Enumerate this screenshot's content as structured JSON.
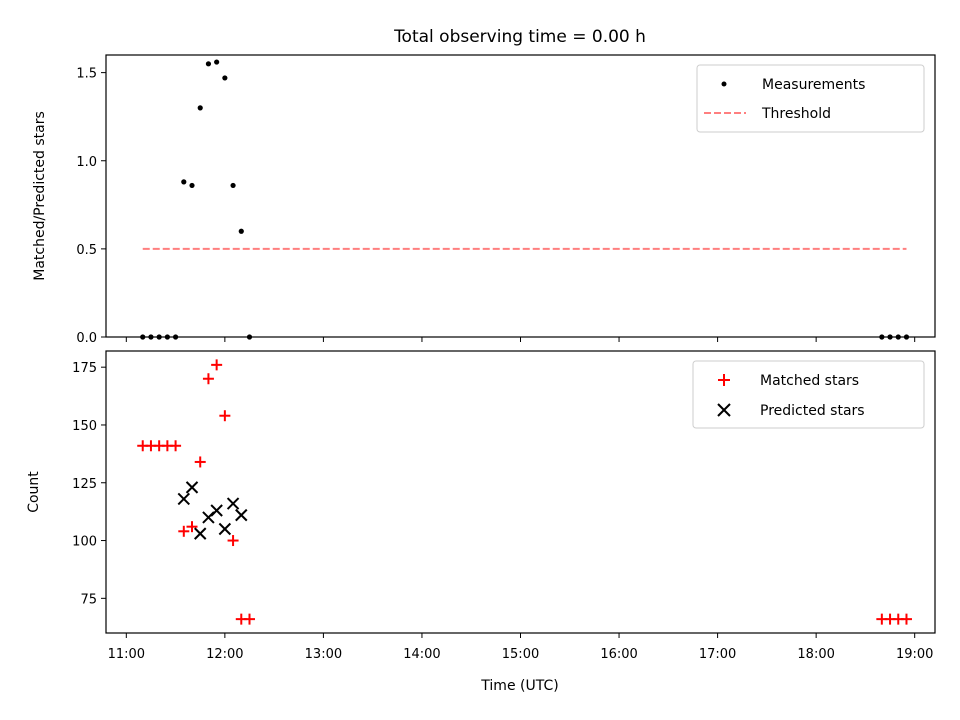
{
  "chart_data": [
    {
      "type": "scatter",
      "title": "Total observing time = 0.00 h",
      "ylabel": "Matched/Predicted stars",
      "xlim": [
        "11:00",
        "19:00"
      ],
      "ylim": [
        0,
        1.6
      ],
      "yticks": [
        0.0,
        0.5,
        1.0,
        1.5
      ],
      "legend": {
        "placement": "upper right",
        "entries": [
          "Measurements",
          "Threshold"
        ]
      },
      "series": [
        {
          "name": "Measurements",
          "marker": "dot",
          "color": "#000000",
          "x": [
            "11:10",
            "11:15",
            "11:20",
            "11:25",
            "11:30",
            "11:35",
            "11:40",
            "11:45",
            "11:50",
            "11:55",
            "12:00",
            "12:05",
            "12:10",
            "12:15",
            "18:40",
            "18:45",
            "18:50",
            "18:55"
          ],
          "y": [
            0.0,
            0.0,
            0.0,
            0.0,
            0.0,
            0.88,
            0.86,
            1.3,
            1.55,
            1.56,
            1.47,
            0.86,
            0.6,
            0.0,
            0.0,
            0.0,
            0.0,
            0.0
          ]
        },
        {
          "name": "Threshold",
          "style": "dashed",
          "color": "#ff7f7f",
          "x": [
            "11:10",
            "18:55"
          ],
          "y": [
            0.5,
            0.5
          ]
        }
      ]
    },
    {
      "type": "scatter",
      "xlabel": "Time (UTC)",
      "ylabel": "Count",
      "xlim": [
        "11:00",
        "19:00"
      ],
      "ylim": [
        60,
        182
      ],
      "xticks": [
        "11:00",
        "12:00",
        "13:00",
        "14:00",
        "15:00",
        "16:00",
        "17:00",
        "18:00",
        "19:00"
      ],
      "yticks": [
        75,
        100,
        125,
        150,
        175
      ],
      "legend": {
        "placement": "upper right",
        "entries": [
          "Matched stars",
          "Predicted stars"
        ]
      },
      "series": [
        {
          "name": "Matched stars",
          "marker": "plus",
          "color": "#ff0000",
          "x": [
            "11:10",
            "11:15",
            "11:20",
            "11:25",
            "11:30",
            "11:35",
            "11:40",
            "11:45",
            "11:50",
            "11:55",
            "12:00",
            "12:05",
            "12:10",
            "12:15",
            "18:40",
            "18:45",
            "18:50",
            "18:55"
          ],
          "y": [
            141,
            141,
            141,
            141,
            141,
            104,
            106,
            134,
            170,
            176,
            154,
            100,
            66,
            66,
            66,
            66,
            66,
            66
          ]
        },
        {
          "name": "Predicted stars",
          "marker": "x",
          "color": "#000000",
          "x": [
            "11:35",
            "11:40",
            "11:45",
            "11:50",
            "11:55",
            "12:00",
            "12:05",
            "12:10"
          ],
          "y": [
            118,
            123,
            103,
            110,
            113,
            105,
            116,
            111
          ]
        }
      ]
    }
  ]
}
